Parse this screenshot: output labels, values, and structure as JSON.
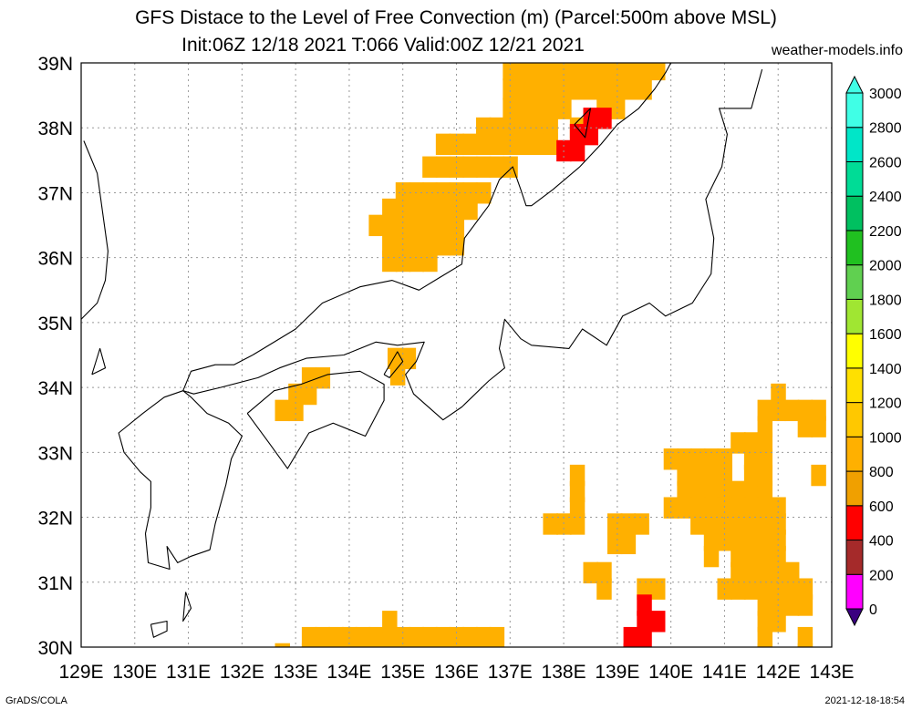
{
  "title_line1": "GFS Distace to the Level of Free Convection (m) (Parcel:500m above MSL)",
  "title_line2": "Init:06Z 12/18 2021 T:066 Valid:00Z 12/21 2021",
  "credit": "weather-models.info",
  "footer_left": "GrADS/COLA",
  "footer_right": "2021-12-18-18:54",
  "lat_labels": [
    "39N",
    "38N",
    "37N",
    "36N",
    "35N",
    "34N",
    "33N",
    "32N",
    "31N",
    "30N"
  ],
  "lon_labels": [
    "129E",
    "130E",
    "131E",
    "132E",
    "133E",
    "134E",
    "135E",
    "136E",
    "137E",
    "138E",
    "139E",
    "140E",
    "141E",
    "142E",
    "143E"
  ],
  "colorbar": {
    "labels": [
      "0",
      "200",
      "400",
      "600",
      "800",
      "1000",
      "1200",
      "1400",
      "1600",
      "1800",
      "2000",
      "2200",
      "2400",
      "2600",
      "2800",
      "3000"
    ],
    "colors": [
      "#3a0080",
      "#ff00ff",
      "#a52a2a",
      "#ff0000",
      "#f0a000",
      "#ffb000",
      "#ffc800",
      "#ffe000",
      "#ffff00",
      "#a0e632",
      "#60d050",
      "#20c020",
      "#00c060",
      "#00dc96",
      "#00e6c8",
      "#40ffe6"
    ]
  },
  "fields": [
    {
      "color": "#ffb000",
      "cells": [
        [
          137,
          38.9
        ],
        [
          137.25,
          38.9
        ],
        [
          137.5,
          38.9
        ],
        [
          137.75,
          38.9
        ],
        [
          138,
          38.9
        ],
        [
          138.25,
          38.9
        ],
        [
          138.5,
          38.9
        ],
        [
          138.75,
          38.9
        ],
        [
          139,
          38.9
        ],
        [
          139.25,
          38.9
        ],
        [
          139.5,
          38.9
        ],
        [
          139.75,
          38.9
        ],
        [
          137,
          38.6
        ],
        [
          137.25,
          38.6
        ],
        [
          137.5,
          38.6
        ],
        [
          137.75,
          38.6
        ],
        [
          138,
          38.6
        ],
        [
          138.25,
          38.6
        ],
        [
          138.5,
          38.6
        ],
        [
          138.75,
          38.6
        ],
        [
          139,
          38.6
        ],
        [
          139.25,
          38.6
        ],
        [
          139.5,
          38.6
        ],
        [
          137,
          38.3
        ],
        [
          137.25,
          38.3
        ],
        [
          137.5,
          38.3
        ],
        [
          137.75,
          38.3
        ],
        [
          138,
          38.3
        ],
        [
          138.75,
          38.3
        ],
        [
          139,
          38.3
        ],
        [
          136.5,
          38
        ],
        [
          136.75,
          38
        ],
        [
          137,
          38
        ],
        [
          137.25,
          38
        ],
        [
          137.5,
          38
        ],
        [
          137.75,
          38
        ],
        [
          138.25,
          38
        ],
        [
          138.5,
          38
        ],
        [
          135.75,
          37.75
        ],
        [
          136,
          37.75
        ],
        [
          136.25,
          37.75
        ],
        [
          136.5,
          37.75
        ],
        [
          136.75,
          37.75
        ],
        [
          137,
          37.75
        ],
        [
          137.25,
          37.75
        ],
        [
          137.5,
          37.75
        ],
        [
          137.75,
          37.75
        ],
        [
          135.5,
          37.4
        ],
        [
          135.75,
          37.4
        ],
        [
          136,
          37.4
        ],
        [
          136.25,
          37.4
        ],
        [
          136.5,
          37.4
        ],
        [
          136.75,
          37.4
        ],
        [
          137,
          37.4
        ],
        [
          135,
          37
        ],
        [
          135.25,
          37
        ],
        [
          135.5,
          37
        ],
        [
          135.75,
          37
        ],
        [
          136,
          37
        ],
        [
          136.25,
          37
        ],
        [
          136.5,
          37
        ],
        [
          134.75,
          36.75
        ],
        [
          135,
          36.75
        ],
        [
          135.25,
          36.75
        ],
        [
          135.5,
          36.75
        ],
        [
          135.75,
          36.75
        ],
        [
          136,
          36.75
        ],
        [
          136.25,
          36.75
        ],
        [
          134.5,
          36.5
        ],
        [
          134.75,
          36.5
        ],
        [
          135,
          36.5
        ],
        [
          135.25,
          36.5
        ],
        [
          135.5,
          36.5
        ],
        [
          135.75,
          36.5
        ],
        [
          136,
          36.5
        ],
        [
          134.75,
          36.2
        ],
        [
          135,
          36.2
        ],
        [
          135.25,
          36.2
        ],
        [
          135.5,
          36.2
        ],
        [
          135.75,
          36.2
        ],
        [
          136,
          36.2
        ],
        [
          134.75,
          35.95
        ],
        [
          135,
          35.95
        ],
        [
          135.25,
          35.95
        ],
        [
          135.5,
          35.95
        ],
        [
          133.25,
          34.15
        ],
        [
          133.5,
          34.15
        ],
        [
          133,
          33.9
        ],
        [
          133.25,
          33.9
        ],
        [
          132.75,
          33.65
        ],
        [
          133,
          33.65
        ],
        [
          134.85,
          34.45
        ],
        [
          135.1,
          34.45
        ],
        [
          134.9,
          34.2
        ],
        [
          138.95,
          31.9
        ],
        [
          139.2,
          31.9
        ],
        [
          139.45,
          31.9
        ],
        [
          138.95,
          31.6
        ],
        [
          139.2,
          31.6
        ],
        [
          137.75,
          31.9
        ],
        [
          138,
          31.9
        ],
        [
          138.25,
          31.9
        ],
        [
          138.25,
          32.15
        ],
        [
          138.25,
          32.4
        ],
        [
          138.25,
          32.65
        ],
        [
          138.5,
          31.15
        ],
        [
          138.75,
          30.9
        ],
        [
          138.75,
          31.15
        ],
        [
          139.5,
          30.9
        ],
        [
          139.75,
          30.9
        ],
        [
          133.25,
          30.15
        ],
        [
          133.5,
          30.15
        ],
        [
          133.75,
          30.15
        ],
        [
          134,
          30.15
        ],
        [
          134.25,
          30.15
        ],
        [
          134.5,
          30.15
        ],
        [
          134.75,
          30.15
        ],
        [
          135,
          30.15
        ],
        [
          135.25,
          30.15
        ],
        [
          135.5,
          30.15
        ],
        [
          135.75,
          30.15
        ],
        [
          136,
          30.15
        ],
        [
          136.25,
          30.15
        ],
        [
          136.5,
          30.15
        ],
        [
          136.75,
          30.15
        ],
        [
          133.25,
          29.9
        ],
        [
          133.5,
          29.9
        ],
        [
          133.75,
          29.9
        ],
        [
          134,
          29.9
        ],
        [
          134.25,
          29.9
        ],
        [
          134.5,
          29.9
        ],
        [
          134.75,
          29.9
        ],
        [
          135,
          29.9
        ],
        [
          135.25,
          29.9
        ],
        [
          135.5,
          29.9
        ],
        [
          134.75,
          30.4
        ],
        [
          132.75,
          29.9
        ],
        [
          140,
          32.9
        ],
        [
          140.25,
          32.9
        ],
        [
          140.5,
          32.9
        ],
        [
          140.75,
          32.9
        ],
        [
          141,
          32.9
        ],
        [
          140.25,
          32.65
        ],
        [
          140.5,
          32.65
        ],
        [
          140.75,
          32.65
        ],
        [
          141,
          32.65
        ],
        [
          140.25,
          32.4
        ],
        [
          140.5,
          32.4
        ],
        [
          140.75,
          32.4
        ],
        [
          141,
          32.4
        ],
        [
          141.25,
          32.4
        ],
        [
          141.5,
          32.4
        ],
        [
          141.75,
          32.4
        ],
        [
          140,
          32.15
        ],
        [
          140.25,
          32.15
        ],
        [
          140.5,
          32.15
        ],
        [
          140.75,
          32.15
        ],
        [
          141,
          32.15
        ],
        [
          141.25,
          32.15
        ],
        [
          141.5,
          32.15
        ],
        [
          141.75,
          32.15
        ],
        [
          142,
          32.15
        ],
        [
          140.5,
          31.9
        ],
        [
          140.75,
          31.9
        ],
        [
          141,
          31.9
        ],
        [
          141.25,
          31.9
        ],
        [
          141.5,
          31.9
        ],
        [
          141.75,
          31.9
        ],
        [
          142,
          31.9
        ],
        [
          140.75,
          31.65
        ],
        [
          141,
          31.65
        ],
        [
          141.25,
          31.65
        ],
        [
          141.5,
          31.65
        ],
        [
          141.75,
          31.65
        ],
        [
          142,
          31.65
        ],
        [
          140.75,
          31.4
        ],
        [
          141.25,
          31.4
        ],
        [
          141.5,
          31.4
        ],
        [
          141.75,
          31.4
        ],
        [
          142,
          31.4
        ],
        [
          141.25,
          31.15
        ],
        [
          141.5,
          31.15
        ],
        [
          141.75,
          31.15
        ],
        [
          142,
          31.15
        ],
        [
          142.25,
          31.15
        ],
        [
          141,
          30.9
        ],
        [
          141.25,
          30.9
        ],
        [
          141.5,
          30.9
        ],
        [
          141.75,
          30.9
        ],
        [
          142,
          30.9
        ],
        [
          142.25,
          30.9
        ],
        [
          142.5,
          30.9
        ],
        [
          141.75,
          30.65
        ],
        [
          142,
          30.65
        ],
        [
          142.25,
          30.65
        ],
        [
          142.5,
          30.65
        ],
        [
          141.75,
          30.4
        ],
        [
          142,
          30.4
        ],
        [
          141.75,
          30.15
        ],
        [
          141.75,
          29.9
        ],
        [
          142.5,
          30.15
        ],
        [
          142.5,
          29.9
        ],
        [
          141.25,
          33.15
        ],
        [
          141.5,
          33.15
        ],
        [
          141.75,
          33.15
        ],
        [
          141.75,
          33.4
        ],
        [
          141.75,
          33.65
        ],
        [
          142,
          33.65
        ],
        [
          142,
          33.9
        ],
        [
          142.5,
          33.4
        ],
        [
          142.75,
          33.4
        ],
        [
          142.75,
          33.65
        ],
        [
          142.5,
          33.65
        ],
        [
          142.25,
          33.65
        ],
        [
          142.75,
          32.65
        ],
        [
          141.75,
          32.9
        ],
        [
          141.75,
          32.65
        ],
        [
          141.5,
          32.9
        ],
        [
          141.5,
          32.65
        ]
      ]
    },
    {
      "color": "#ff0000",
      "cells": [
        [
          138.25,
          37.9
        ],
        [
          138.5,
          37.9
        ],
        [
          138.5,
          38.15
        ],
        [
          138.75,
          38.15
        ],
        [
          138,
          37.65
        ],
        [
          138.25,
          37.65
        ],
        [
          139.75,
          30.4
        ],
        [
          139.5,
          30.4
        ],
        [
          139.5,
          30.15
        ],
        [
          139.25,
          29.9
        ],
        [
          139.25,
          30.15
        ],
        [
          139.5,
          30.65
        ]
      ]
    }
  ],
  "coastlines": [
    [
      [
        129,
        35.05
      ],
      [
        129.3,
        35.3
      ],
      [
        129.45,
        35.65
      ],
      [
        129.5,
        36.1
      ],
      [
        129.4,
        36.7
      ],
      [
        129.3,
        37.3
      ],
      [
        129.05,
        37.8
      ]
    ],
    [
      [
        132.2,
        34.5
      ],
      [
        132.4,
        34.6
      ],
      [
        133,
        34.9
      ],
      [
        133.5,
        35.3
      ],
      [
        134.2,
        35.55
      ],
      [
        134.8,
        35.65
      ],
      [
        135.3,
        35.5
      ],
      [
        135.7,
        35.7
      ],
      [
        136.1,
        35.9
      ],
      [
        136.15,
        36.3
      ],
      [
        136.6,
        36.8
      ],
      [
        136.8,
        37.2
      ],
      [
        137.05,
        37.4
      ],
      [
        137.2,
        37.05
      ],
      [
        137.3,
        36.8
      ],
      [
        137.4,
        36.8
      ],
      [
        137.8,
        37.05
      ],
      [
        138.3,
        37.4
      ],
      [
        138.7,
        37.75
      ],
      [
        139,
        38.05
      ],
      [
        139.4,
        38.3
      ],
      [
        139.7,
        38.6
      ],
      [
        139.9,
        38.85
      ],
      [
        140,
        39
      ]
    ],
    [
      [
        132.2,
        34.5
      ],
      [
        131.85,
        34.35
      ],
      [
        131.5,
        34.35
      ],
      [
        131.05,
        34.25
      ],
      [
        130.9,
        33.95
      ],
      [
        131.1,
        33.9
      ],
      [
        131.6,
        34
      ],
      [
        132.3,
        34.15
      ],
      [
        132.7,
        34.3
      ],
      [
        133.2,
        34.45
      ],
      [
        133.9,
        34.5
      ],
      [
        134.5,
        34.7
      ],
      [
        134.9,
        34.65
      ],
      [
        135.4,
        34.7
      ],
      [
        135.25,
        34.4
      ],
      [
        135.05,
        34.2
      ],
      [
        135.2,
        33.9
      ],
      [
        135.75,
        33.5
      ],
      [
        136.1,
        33.7
      ],
      [
        136.6,
        34.1
      ],
      [
        136.9,
        34.3
      ],
      [
        136.8,
        34.6
      ],
      [
        136.9,
        35.05
      ],
      [
        137.2,
        34.75
      ],
      [
        137.4,
        34.65
      ],
      [
        138.1,
        34.6
      ],
      [
        138.35,
        34.9
      ],
      [
        138.8,
        34.65
      ],
      [
        139.1,
        35.1
      ],
      [
        139.6,
        35.3
      ],
      [
        139.9,
        35.1
      ],
      [
        140.4,
        35.3
      ],
      [
        140.75,
        35.75
      ],
      [
        140.8,
        36.3
      ],
      [
        140.65,
        36.9
      ],
      [
        140.95,
        37.4
      ],
      [
        141.05,
        37.9
      ],
      [
        140.9,
        38.3
      ],
      [
        141.5,
        38.3
      ],
      [
        141.7,
        38.9
      ]
    ],
    [
      [
        130.9,
        33.95
      ],
      [
        130.55,
        33.85
      ],
      [
        130.15,
        33.6
      ],
      [
        129.7,
        33.3
      ],
      [
        129.8,
        33
      ],
      [
        130.1,
        32.7
      ],
      [
        130.3,
        32.55
      ],
      [
        130.3,
        32.15
      ],
      [
        130.2,
        31.75
      ],
      [
        130.25,
        31.3
      ],
      [
        130.65,
        31.2
      ],
      [
        130.6,
        31.55
      ],
      [
        130.8,
        31.3
      ],
      [
        131.05,
        31.4
      ],
      [
        131.4,
        31.5
      ],
      [
        131.5,
        31.9
      ],
      [
        131.7,
        32.5
      ],
      [
        131.8,
        32.9
      ],
      [
        132,
        33.25
      ],
      [
        131.75,
        33.45
      ],
      [
        131.35,
        33.6
      ],
      [
        131.05,
        33.85
      ],
      [
        130.9,
        33.95
      ]
    ],
    [
      [
        132.1,
        33.6
      ],
      [
        132.6,
        33.95
      ],
      [
        133.1,
        34.05
      ],
      [
        133.6,
        34.2
      ],
      [
        134.2,
        34.25
      ],
      [
        134.65,
        34.05
      ],
      [
        134.65,
        33.8
      ],
      [
        134.3,
        33.25
      ],
      [
        133.7,
        33.45
      ],
      [
        133.25,
        33.3
      ],
      [
        132.85,
        32.75
      ],
      [
        132.5,
        33.15
      ],
      [
        132.1,
        33.6
      ]
    ],
    [
      [
        134.65,
        34.2
      ],
      [
        134.9,
        34.55
      ],
      [
        135,
        34.4
      ],
      [
        134.75,
        34.15
      ],
      [
        134.65,
        34.2
      ]
    ],
    [
      [
        129.2,
        34.2
      ],
      [
        129.35,
        34.6
      ],
      [
        129.45,
        34.3
      ],
      [
        129.2,
        34.2
      ]
    ],
    [
      [
        130.3,
        30.35
      ],
      [
        130.6,
        30.4
      ],
      [
        130.6,
        30.25
      ],
      [
        130.35,
        30.15
      ],
      [
        130.3,
        30.35
      ]
    ],
    [
      [
        130.95,
        30.85
      ],
      [
        131.05,
        30.6
      ],
      [
        130.9,
        30.4
      ],
      [
        130.95,
        30.85
      ]
    ],
    [
      [
        138.2,
        38.05
      ],
      [
        138.5,
        38.3
      ],
      [
        138.4,
        37.85
      ],
      [
        138.2,
        38.05
      ]
    ]
  ]
}
